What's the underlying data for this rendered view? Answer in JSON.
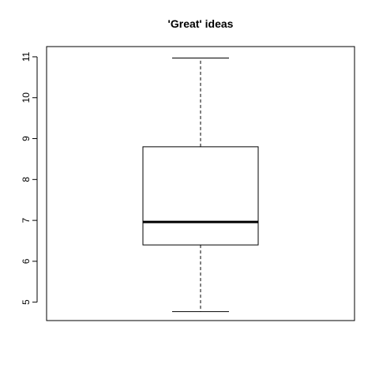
{
  "chart_data": {
    "type": "boxplot",
    "title": "'Great' ideas",
    "xlabel": "",
    "ylabel": "",
    "ylim": [
      4.55,
      11.25
    ],
    "y_ticks": [
      5,
      6,
      7,
      8,
      9,
      10,
      11
    ],
    "grid": false,
    "box": {
      "min": 4.77,
      "q1": 6.4,
      "median": 6.96,
      "q3": 8.8,
      "max": 10.97
    }
  }
}
